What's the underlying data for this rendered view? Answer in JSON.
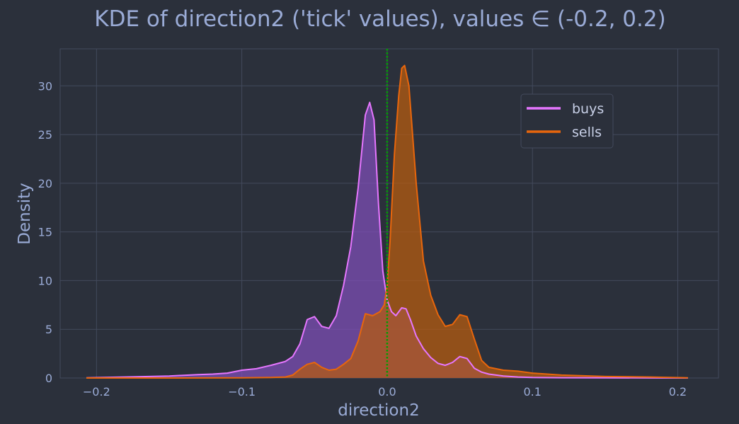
{
  "chart_data": {
    "type": "area",
    "title": "KDE of direction2 ('tick' values), values ∈ (-0.2, 0.2)",
    "xlabel": "direction2",
    "ylabel": "Density",
    "xlim": [
      -0.225,
      0.228
    ],
    "ylim": [
      0,
      33.8
    ],
    "xticks": [
      -0.2,
      -0.1,
      0.0,
      0.1,
      0.2
    ],
    "xtick_labels": [
      "−0.2",
      "−0.1",
      "0.0",
      "0.1",
      "0.2"
    ],
    "yticks": [
      0,
      5,
      10,
      15,
      20,
      25,
      30
    ],
    "ytick_labels": [
      "0",
      "5",
      "10",
      "15",
      "20",
      "25",
      "30"
    ],
    "grid": true,
    "legend_position": "upper right",
    "vline": {
      "x": 0.0,
      "color": "#00a000",
      "style": "dotted"
    },
    "colors": {
      "background": "#2b303b",
      "grid": "#434a5c",
      "text": "#9aabd6"
    },
    "series": [
      {
        "name": "buys",
        "color": "#e676ff",
        "fill": "#7d4db5",
        "x": [
          -0.207,
          -0.18,
          -0.15,
          -0.13,
          -0.12,
          -0.11,
          -0.1,
          -0.09,
          -0.08,
          -0.07,
          -0.065,
          -0.06,
          -0.055,
          -0.05,
          -0.045,
          -0.04,
          -0.035,
          -0.03,
          -0.025,
          -0.02,
          -0.015,
          -0.012,
          -0.009,
          -0.006,
          -0.003,
          0.0,
          0.003,
          0.006,
          0.01,
          0.013,
          0.016,
          0.02,
          0.025,
          0.03,
          0.035,
          0.04,
          0.045,
          0.05,
          0.055,
          0.06,
          0.065,
          0.07,
          0.08,
          0.09,
          0.1,
          0.12,
          0.15,
          0.18,
          0.207
        ],
        "y": [
          0.02,
          0.1,
          0.2,
          0.35,
          0.4,
          0.5,
          0.8,
          0.95,
          1.3,
          1.7,
          2.2,
          3.5,
          6.0,
          6.3,
          5.3,
          5.1,
          6.4,
          9.5,
          13.5,
          19.5,
          27.0,
          28.3,
          26.5,
          18.0,
          11.0,
          8.0,
          6.8,
          6.4,
          7.2,
          7.1,
          6.0,
          4.3,
          3.0,
          2.1,
          1.5,
          1.3,
          1.6,
          2.2,
          2.0,
          1.0,
          0.6,
          0.4,
          0.2,
          0.1,
          0.05,
          0.03,
          0.02,
          0.01,
          0.0
        ]
      },
      {
        "name": "sells",
        "color": "#e8660c",
        "fill": "#b65b10",
        "x": [
          -0.207,
          -0.15,
          -0.1,
          -0.08,
          -0.07,
          -0.065,
          -0.06,
          -0.055,
          -0.05,
          -0.045,
          -0.04,
          -0.035,
          -0.03,
          -0.025,
          -0.02,
          -0.015,
          -0.01,
          -0.005,
          -0.002,
          0.0,
          0.002,
          0.005,
          0.008,
          0.01,
          0.012,
          0.015,
          0.02,
          0.025,
          0.03,
          0.035,
          0.04,
          0.045,
          0.05,
          0.055,
          0.06,
          0.065,
          0.07,
          0.08,
          0.09,
          0.1,
          0.12,
          0.15,
          0.18,
          0.207
        ],
        "y": [
          0.0,
          0.0,
          0.02,
          0.05,
          0.1,
          0.3,
          0.9,
          1.4,
          1.6,
          1.1,
          0.8,
          0.9,
          1.4,
          2.0,
          3.8,
          6.6,
          6.4,
          6.8,
          7.5,
          9.5,
          14.0,
          23.0,
          29.0,
          31.8,
          32.1,
          30.0,
          20.0,
          12.0,
          8.5,
          6.5,
          5.3,
          5.5,
          6.5,
          6.3,
          4.0,
          1.8,
          1.1,
          0.8,
          0.7,
          0.5,
          0.3,
          0.15,
          0.1,
          0.02
        ]
      }
    ]
  }
}
